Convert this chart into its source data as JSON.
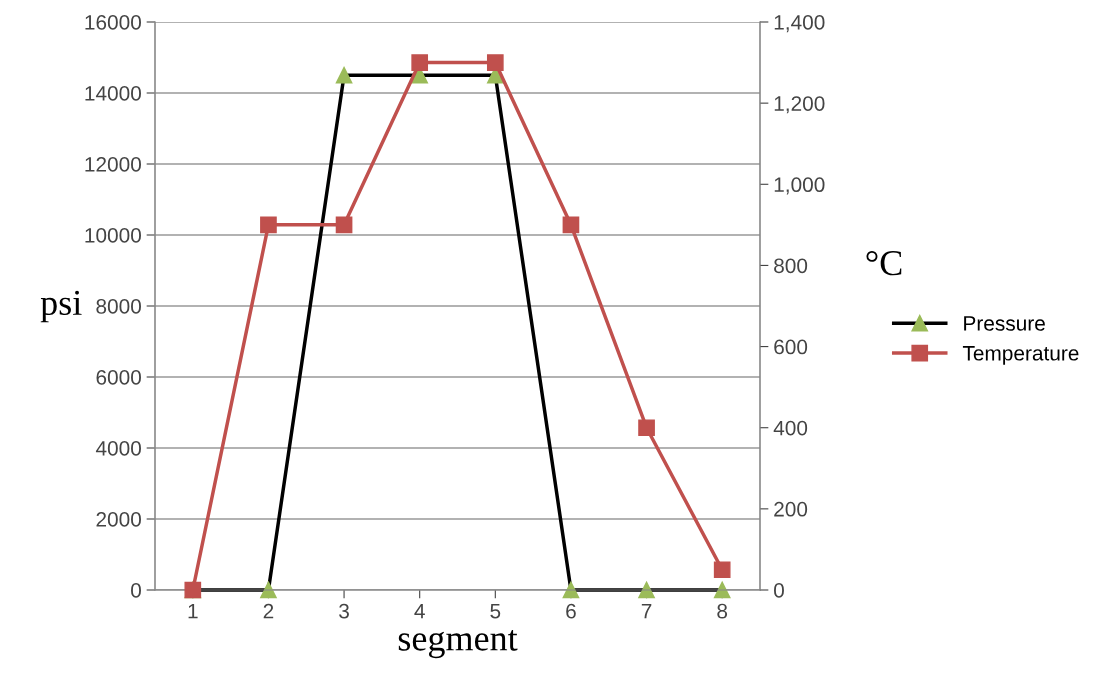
{
  "chart_data": {
    "type": "line",
    "xlabel": "segment",
    "ylabel": "psi",
    "y2label": "°C",
    "categories": [
      "1",
      "2",
      "3",
      "4",
      "5",
      "6",
      "7",
      "8"
    ],
    "series": [
      {
        "name": "Pressure",
        "color": "#000000",
        "marker": "triangle",
        "values": [
          0,
          0,
          14500,
          14500,
          14500,
          0,
          0,
          0
        ]
      },
      {
        "name": "Temperature",
        "color": "#c0504d",
        "marker": "square",
        "axis": "y2",
        "values": [
          0,
          900,
          900,
          1300,
          1300,
          900,
          400,
          50
        ]
      }
    ],
    "ylim": [
      0,
      16000
    ],
    "yticks": [
      0,
      2000,
      4000,
      6000,
      8000,
      10000,
      12000,
      14000,
      16000
    ],
    "y2lim": [
      0,
      1400
    ],
    "y2ticks": [
      {
        "value": 0,
        "label": "0"
      },
      {
        "value": 200,
        "label": "200"
      },
      {
        "value": 400,
        "label": "400"
      },
      {
        "value": 600,
        "label": "600"
      },
      {
        "value": 800,
        "label": "800"
      },
      {
        "value": 1000,
        "label": "1,000"
      },
      {
        "value": 1200,
        "label": "1,200"
      },
      {
        "value": 1400,
        "label": "1,400"
      }
    ],
    "grid": "y",
    "legend": "right",
    "line_style": "solid"
  }
}
